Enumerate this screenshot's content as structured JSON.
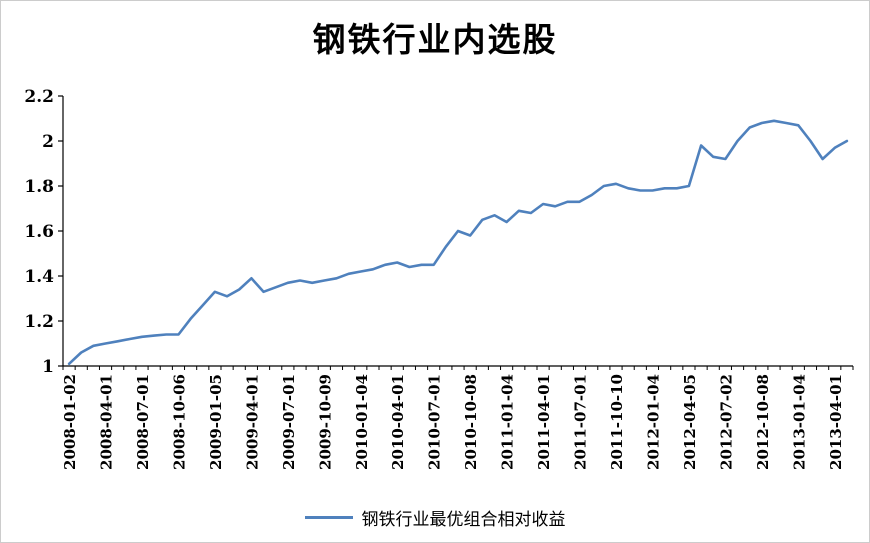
{
  "chart": {
    "title": "钢铁行业内选股",
    "legend_label": "钢铁行业最优组合相对收益",
    "line_color": "#4f81bd",
    "axis_color": "#000000"
  },
  "chart_data": {
    "type": "line",
    "title": "钢铁行业内选股",
    "legend": [
      "钢铁行业最优组合相对收益"
    ],
    "legend_position": "bottom",
    "grid": false,
    "ylim": [
      1,
      2.2
    ],
    "y_ticks": [
      1,
      1.2,
      1.4,
      1.6,
      1.8,
      2,
      2.2
    ],
    "x_tick_every": 3,
    "x_tick_labels": [
      "2008-01-02",
      "2008-04-01",
      "2008-07-01",
      "2008-10-06",
      "2009-01-05",
      "2009-04-01",
      "2009-07-01",
      "2009-10-09",
      "2010-01-04",
      "2010-04-01",
      "2010-07-01",
      "2010-10-08",
      "2011-01-04",
      "2011-04-01",
      "2011-07-01",
      "2011-10-10",
      "2012-01-04",
      "2012-04-05",
      "2012-07-02",
      "2012-10-08",
      "2013-01-04",
      "2013-04-01"
    ],
    "series": [
      {
        "name": "钢铁行业最优组合相对收益",
        "values": [
          1.01,
          1.06,
          1.09,
          1.1,
          1.11,
          1.12,
          1.13,
          1.135,
          1.14,
          1.14,
          1.21,
          1.27,
          1.33,
          1.31,
          1.34,
          1.39,
          1.33,
          1.35,
          1.37,
          1.38,
          1.37,
          1.38,
          1.39,
          1.41,
          1.42,
          1.43,
          1.45,
          1.46,
          1.44,
          1.45,
          1.45,
          1.53,
          1.6,
          1.58,
          1.65,
          1.67,
          1.64,
          1.69,
          1.68,
          1.72,
          1.71,
          1.73,
          1.73,
          1.76,
          1.8,
          1.81,
          1.79,
          1.78,
          1.78,
          1.79,
          1.79,
          1.8,
          1.98,
          1.93,
          1.92,
          2.0,
          2.06,
          2.08,
          2.09,
          2.08,
          2.07,
          2.0,
          1.92,
          1.97,
          2.0
        ]
      }
    ]
  }
}
